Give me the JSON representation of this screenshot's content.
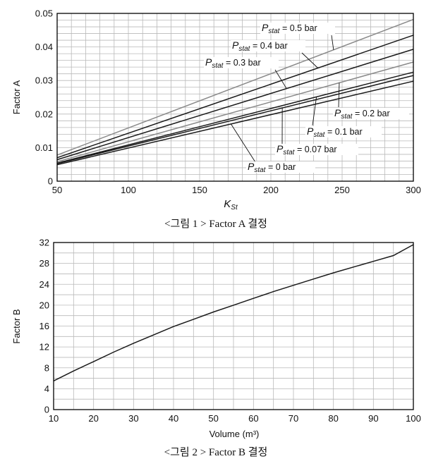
{
  "chart_data": [
    {
      "type": "line",
      "xlabel_main": "K",
      "xlabel_sub": "St",
      "ylabel": "Factor A",
      "xlim": [
        50,
        300
      ],
      "ylim": [
        0,
        0.05
      ],
      "xticks": [
        "50",
        "100",
        "150",
        "200",
        "250",
        "300"
      ],
      "yticks": [
        "0",
        "0.01",
        "0.02",
        "0.03",
        "0.04",
        "0.05"
      ],
      "grid": true,
      "series": [
        {
          "label_prefix": "P",
          "label_sub": "stat",
          "label_value": " = 0.5 bar",
          "color": "#8a8a8a",
          "x": [
            50,
            300
          ],
          "y": [
            0.0078,
            0.0482
          ]
        },
        {
          "label_prefix": "P",
          "label_sub": "stat",
          "label_value": " = 0.4 bar",
          "color": "#1a1a1a",
          "x": [
            50,
            300
          ],
          "y": [
            0.007,
            0.0435
          ]
        },
        {
          "label_prefix": "P",
          "label_sub": "stat",
          "label_value": " = 0.3 bar",
          "color": "#1a1a1a",
          "x": [
            50,
            300
          ],
          "y": [
            0.0064,
            0.0393
          ]
        },
        {
          "label_prefix": "P",
          "label_sub": "stat",
          "label_value": " = 0.2 bar",
          "color": "#8a8a8a",
          "x": [
            50,
            300
          ],
          "y": [
            0.0058,
            0.0355
          ]
        },
        {
          "label_prefix": "P",
          "label_sub": "stat",
          "label_value": " = 0.1 bar",
          "color": "#1a1a1a",
          "x": [
            50,
            300
          ],
          "y": [
            0.0054,
            0.0325
          ]
        },
        {
          "label_prefix": "P",
          "label_sub": "stat",
          "label_value": " = 0.07 bar",
          "color": "#1a1a1a",
          "x": [
            50,
            300
          ],
          "y": [
            0.0052,
            0.0315
          ]
        },
        {
          "label_prefix": "P",
          "label_sub": "stat",
          "label_value": " = 0 bar",
          "color": "#1a1a1a",
          "x": [
            50,
            300
          ],
          "y": [
            0.0049,
            0.0298
          ]
        }
      ],
      "caption": "<그림 1 > Factor A 결정"
    },
    {
      "type": "line",
      "xlabel": "Volume (m³)",
      "ylabel": "Factor B",
      "xlim": [
        10,
        100
      ],
      "ylim": [
        0,
        32
      ],
      "xticks": [
        "10",
        "20",
        "30",
        "40",
        "50",
        "60",
        "70",
        "80",
        "90",
        "100"
      ],
      "yticks": [
        "0",
        "4",
        "8",
        "12",
        "16",
        "20",
        "24",
        "28",
        "32"
      ],
      "grid": true,
      "series": [
        {
          "color": "#1a1a1a",
          "x": [
            10,
            15,
            20,
            25,
            30,
            35,
            40,
            45,
            50,
            55,
            60,
            65,
            70,
            75,
            80,
            85,
            90,
            95,
            100
          ],
          "y": [
            5.5,
            7.4,
            9.2,
            11.0,
            12.7,
            14.3,
            15.9,
            17.3,
            18.7,
            20.0,
            21.3,
            22.6,
            23.8,
            25.0,
            26.2,
            27.3,
            28.4,
            29.5,
            31.6
          ]
        }
      ],
      "caption": "<그림 2 > Factor B 결정"
    }
  ]
}
